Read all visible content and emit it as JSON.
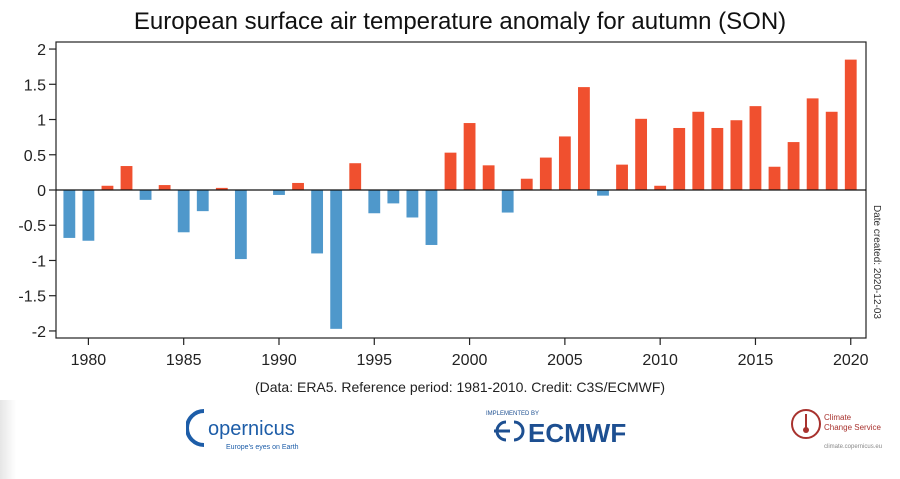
{
  "chart_data": {
    "type": "bar",
    "title": "European surface air temperature anomaly for autumn (SON)",
    "xlabel": "",
    "ylabel": "",
    "xlim": [
      1978.3,
      2020.8
    ],
    "ylim": [
      -2.1,
      2.1
    ],
    "x_ticks": [
      1980,
      1985,
      1990,
      1995,
      2000,
      2005,
      2010,
      2015,
      2020
    ],
    "y_ticks": [
      2,
      1.5,
      1,
      0.5,
      0,
      -0.5,
      -1,
      -1.5,
      -2
    ],
    "grid": false,
    "colors": {
      "positive": "#f0502f",
      "negative": "#4f98cb"
    },
    "categories": [
      1979,
      1980,
      1981,
      1982,
      1983,
      1984,
      1985,
      1986,
      1987,
      1988,
      1989,
      1990,
      1991,
      1992,
      1993,
      1994,
      1995,
      1996,
      1997,
      1998,
      1999,
      2000,
      2001,
      2002,
      2003,
      2004,
      2005,
      2006,
      2007,
      2008,
      2009,
      2010,
      2011,
      2012,
      2013,
      2014,
      2015,
      2016,
      2017,
      2018,
      2019,
      2020
    ],
    "values": [
      -0.68,
      -0.72,
      0.06,
      0.34,
      -0.14,
      0.07,
      -0.6,
      -0.3,
      0.03,
      -0.98,
      0.0,
      -0.07,
      0.1,
      -0.9,
      -1.97,
      0.38,
      -0.33,
      -0.19,
      -0.39,
      -0.78,
      0.53,
      0.95,
      0.35,
      -0.32,
      0.16,
      0.46,
      0.76,
      1.46,
      -0.08,
      0.36,
      1.01,
      0.06,
      0.88,
      1.11,
      0.88,
      0.99,
      1.19,
      0.33,
      0.68,
      1.3,
      1.11,
      1.85
    ]
  },
  "annotations": {
    "credit": "(Data: ERA5.  Reference period: 1981-2010.  Credit: C3S/ECMWF)",
    "date_created": "Date created: 2020-12-03"
  },
  "logos": {
    "copernicus": "opernicus",
    "copernicus_tagline": "Europe's eyes on Earth",
    "ecmwf_small": "IMPLEMENTED BY",
    "ecmwf": "ECMWF",
    "c3s_line1": "Climate",
    "c3s_line2": "Change Service",
    "c3s_url": "climate.copernicus.eu"
  }
}
